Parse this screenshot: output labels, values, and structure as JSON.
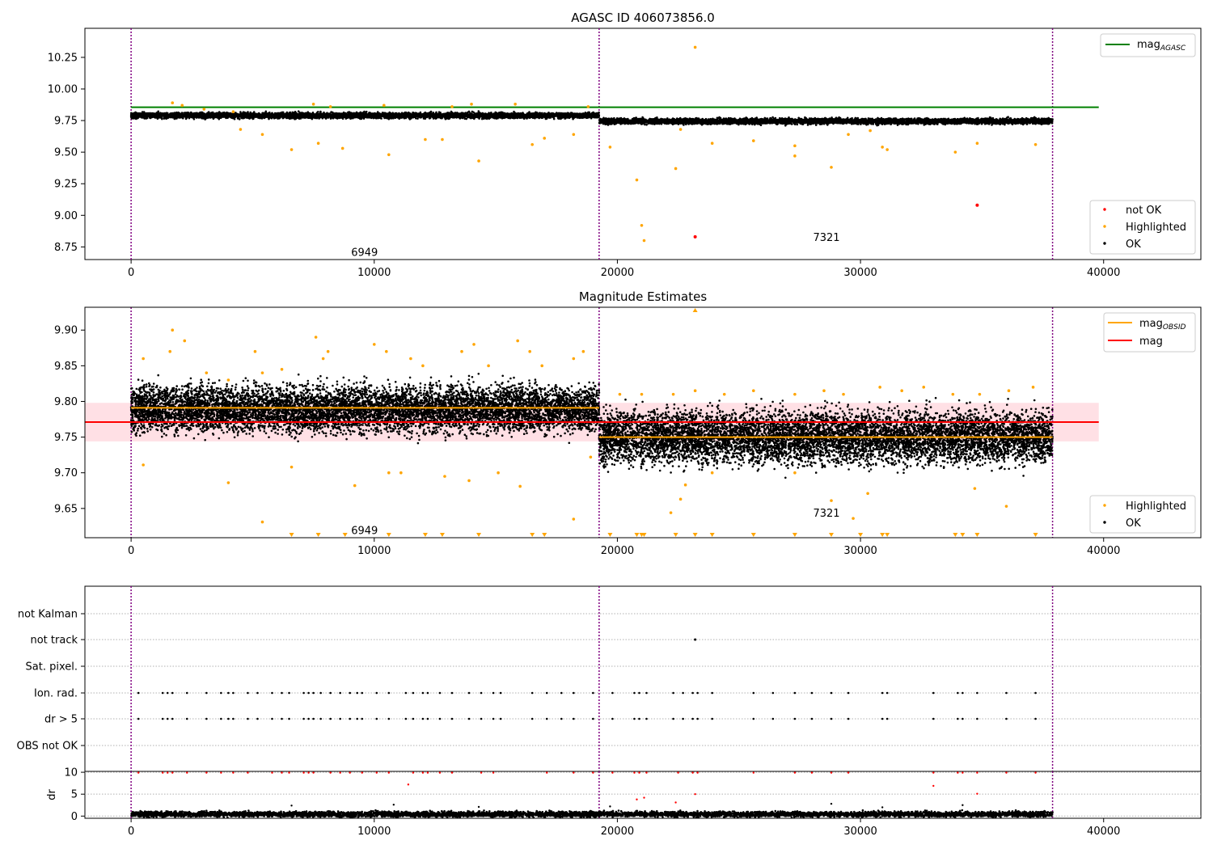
{
  "chart_data": [
    {
      "type": "scatter",
      "title": "AGASC ID 406073856.0",
      "xlim": [
        -1900,
        44000
      ],
      "ylim": [
        8.65,
        10.48
      ],
      "yticks": [
        "8.75",
        "9.00",
        "9.25",
        "9.50",
        "9.75",
        "10.00",
        "10.25"
      ],
      "xticks": [
        "0",
        "10000",
        "20000",
        "30000",
        "40000"
      ],
      "obs_boundaries": [
        0,
        19250,
        37900
      ],
      "obs_labels": [
        {
          "text": "6949",
          "x": 9600,
          "y": 8.71
        },
        {
          "text": "7321",
          "x": 28600,
          "y": 8.83
        }
      ],
      "reference_line": {
        "name_main": "mag",
        "name_sub": "AGASC",
        "y": 9.855,
        "x": [
          0,
          39800
        ],
        "color": "#008000"
      },
      "ok_band": [
        {
          "x": [
            0,
            19250
          ],
          "y_center": 9.79,
          "spread": 0.022
        },
        {
          "x": [
            19250,
            37900
          ],
          "y_center": 9.745,
          "spread": 0.022
        }
      ],
      "highlighted": [
        [
          1700,
          9.89
        ],
        [
          2100,
          9.87
        ],
        [
          3000,
          9.84
        ],
        [
          4200,
          9.82
        ],
        [
          4500,
          9.68
        ],
        [
          5400,
          9.64
        ],
        [
          6600,
          9.52
        ],
        [
          7500,
          9.88
        ],
        [
          7700,
          9.57
        ],
        [
          8200,
          9.86
        ],
        [
          8700,
          9.53
        ],
        [
          10600,
          9.48
        ],
        [
          10400,
          9.87
        ],
        [
          12100,
          9.6
        ],
        [
          12800,
          9.6
        ],
        [
          13200,
          9.86
        ],
        [
          14000,
          9.88
        ],
        [
          14300,
          9.43
        ],
        [
          15800,
          9.88
        ],
        [
          16500,
          9.56
        ],
        [
          17000,
          9.61
        ],
        [
          18200,
          9.64
        ],
        [
          18800,
          9.86
        ],
        [
          19700,
          9.54
        ],
        [
          20800,
          9.28
        ],
        [
          21000,
          8.92
        ],
        [
          21100,
          8.8
        ],
        [
          22400,
          9.37
        ],
        [
          23200,
          10.33
        ],
        [
          23900,
          9.57
        ],
        [
          25600,
          9.59
        ],
        [
          27300,
          9.55
        ],
        [
          27300,
          9.47
        ],
        [
          28800,
          9.38
        ],
        [
          29500,
          9.64
        ],
        [
          30400,
          9.67
        ],
        [
          30900,
          9.54
        ],
        [
          31100,
          9.52
        ],
        [
          33900,
          9.5
        ],
        [
          34800,
          9.57
        ],
        [
          37200,
          9.56
        ],
        [
          22600,
          9.68
        ]
      ],
      "not_ok": [
        [
          23200,
          8.83
        ],
        [
          34800,
          9.08
        ]
      ],
      "legend_top": {
        "label_main": "mag",
        "label_sub": "AGASC"
      },
      "legend_bottom": [
        "not OK",
        "Highlighted",
        "OK"
      ],
      "colors": {
        "ok": "#000000",
        "highlighted": "#ffa500",
        "not_ok": "#ff0000",
        "boundary": "#800080"
      }
    },
    {
      "type": "scatter",
      "title": "Magnitude Estimates",
      "xlim": [
        -1900,
        44000
      ],
      "ylim": [
        9.609,
        9.932
      ],
      "yticks": [
        "9.65",
        "9.70",
        "9.75",
        "9.80",
        "9.85",
        "9.90"
      ],
      "xticks": [
        "0",
        "10000",
        "20000",
        "30000",
        "40000"
      ],
      "obs_boundaries": [
        0,
        19250,
        37900
      ],
      "obs_labels": [
        {
          "text": "6949",
          "x": 9600,
          "y": 9.62
        },
        {
          "text": "7321",
          "x": 28600,
          "y": 9.644
        }
      ],
      "mag_line": {
        "label": "mag",
        "y": 9.771,
        "x": [
          -1900,
          39800
        ],
        "band": [
          9.744,
          9.798
        ],
        "color": "#ff0000"
      },
      "mag_obsid": [
        {
          "x": [
            0,
            19250
          ],
          "y": 9.791
        },
        {
          "x": [
            19250,
            37900
          ],
          "y": 9.75
        }
      ],
      "ok_band": [
        {
          "x": [
            0,
            19250
          ],
          "y_center": 9.79,
          "spread": 0.032
        },
        {
          "x": [
            19250,
            37900
          ],
          "y_center": 9.75,
          "spread": 0.036
        }
      ],
      "highlighted_high": [
        [
          500,
          9.86
        ],
        [
          1700,
          9.9
        ],
        [
          1600,
          9.87
        ],
        [
          2200,
          9.885
        ],
        [
          3100,
          9.84
        ],
        [
          4000,
          9.83
        ],
        [
          5100,
          9.87
        ],
        [
          5400,
          9.84
        ],
        [
          6200,
          9.845
        ],
        [
          7600,
          9.89
        ],
        [
          7900,
          9.86
        ],
        [
          8100,
          9.87
        ],
        [
          10000,
          9.88
        ],
        [
          10500,
          9.87
        ],
        [
          11500,
          9.86
        ],
        [
          12000,
          9.85
        ],
        [
          13600,
          9.87
        ],
        [
          14100,
          9.88
        ],
        [
          14700,
          9.85
        ],
        [
          15900,
          9.885
        ],
        [
          16400,
          9.87
        ],
        [
          16900,
          9.85
        ],
        [
          18200,
          9.86
        ],
        [
          18600,
          9.87
        ],
        [
          20100,
          9.81
        ],
        [
          21000,
          9.81
        ],
        [
          22300,
          9.81
        ],
        [
          23200,
          9.815
        ],
        [
          24400,
          9.81
        ],
        [
          25600,
          9.815
        ],
        [
          27300,
          9.81
        ],
        [
          28500,
          9.815
        ],
        [
          29300,
          9.81
        ],
        [
          30800,
          9.82
        ],
        [
          31700,
          9.815
        ],
        [
          32600,
          9.82
        ],
        [
          33800,
          9.81
        ],
        [
          34900,
          9.81
        ],
        [
          36100,
          9.815
        ],
        [
          37100,
          9.82
        ]
      ],
      "highlighted_low": [
        [
          500,
          9.711
        ],
        [
          4000,
          9.686
        ],
        [
          5400,
          9.631
        ],
        [
          6600,
          9.708
        ],
        [
          9200,
          9.682
        ],
        [
          10600,
          9.7
        ],
        [
          11100,
          9.7
        ],
        [
          12900,
          9.695
        ],
        [
          13900,
          9.689
        ],
        [
          15100,
          9.7
        ],
        [
          16000,
          9.681
        ],
        [
          18200,
          9.635
        ],
        [
          18900,
          9.722
        ],
        [
          22200,
          9.644
        ],
        [
          22600,
          9.663
        ],
        [
          22800,
          9.683
        ],
        [
          23900,
          9.7
        ],
        [
          27300,
          9.7
        ],
        [
          28800,
          9.661
        ],
        [
          29700,
          9.636
        ],
        [
          30300,
          9.671
        ],
        [
          34700,
          9.678
        ],
        [
          36000,
          9.653
        ]
      ],
      "clipped_low": [
        6600,
        7700,
        8800,
        10600,
        12100,
        12800,
        14300,
        16500,
        17000,
        19700,
        20800,
        21000,
        21100,
        22400,
        23200,
        23900,
        25600,
        27300,
        28800,
        30000,
        30900,
        31100,
        33900,
        34200,
        34800,
        37200
      ],
      "clipped_high": [
        23200
      ],
      "legend_top": [
        {
          "label_main": "mag",
          "label_sub": "OBSID"
        },
        {
          "label": "mag"
        }
      ],
      "legend_bottom": [
        "Highlighted",
        "OK"
      ],
      "colors": {
        "ok": "#000000",
        "highlighted": "#ffa500",
        "mag": "#ff0000",
        "mag_obsid": "#ffa500",
        "band": "#ffd6dc",
        "boundary": "#800080"
      }
    },
    {
      "type": "scatter",
      "title": "",
      "xlim": [
        -1900,
        44000
      ],
      "categories": [
        "not Kalman",
        "not track",
        "Sat. pixel.",
        "Ion. rad.",
        "dr > 5",
        "OBS not OK"
      ],
      "flag_times": [
        300,
        1300,
        1500,
        1700,
        2300,
        3100,
        3700,
        4000,
        4200,
        4800,
        5200,
        5800,
        6200,
        6500,
        7100,
        7300,
        7500,
        7800,
        8200,
        8600,
        9000,
        9300,
        9500,
        10100,
        10600,
        11300,
        11600,
        12000,
        12200,
        12700,
        13200,
        13900,
        14400,
        14900,
        15200,
        16500,
        17100,
        17700,
        18200,
        19000,
        19800,
        20700,
        20900,
        21200,
        22300,
        22700,
        23100,
        23300,
        23900,
        25600,
        26400,
        27300,
        28000,
        28800,
        29500,
        30900,
        31100,
        33000,
        34000,
        34200,
        34800,
        36000,
        37200
      ],
      "not_track": [
        23200
      ],
      "dr_panel": {
        "ylabel": "dr",
        "ylim": [
          -0.5,
          10.2
        ],
        "yticks": [
          "0",
          "5",
          "10"
        ],
        "clipped_times": [
          300,
          1300,
          1500,
          1700,
          2300,
          3100,
          3700,
          4200,
          4800,
          5800,
          6200,
          6500,
          7100,
          7300,
          7500,
          8200,
          8600,
          9000,
          9500,
          10100,
          10600,
          11600,
          12000,
          12200,
          12700,
          13200,
          14400,
          14900,
          17100,
          18200,
          19000,
          19800,
          20700,
          20900,
          21200,
          22500,
          23100,
          23300,
          25600,
          27300,
          28000,
          28800,
          29500,
          33000,
          34000,
          34200,
          34800,
          36000,
          37200
        ],
        "red_mid": [
          [
            11400,
            7.2
          ],
          [
            20800,
            3.8
          ],
          [
            21100,
            4.2
          ],
          [
            22400,
            3.1
          ],
          [
            23200,
            5.0
          ],
          [
            33000,
            6.9
          ],
          [
            34800,
            5.1
          ]
        ],
        "black_mid": [
          [
            6600,
            2.4
          ],
          [
            10800,
            2.6
          ],
          [
            14300,
            2.1
          ],
          [
            19700,
            2.2
          ],
          [
            28800,
            2.8
          ],
          [
            30900,
            2.0
          ],
          [
            34200,
            2.5
          ]
        ]
      },
      "xticks": [
        "0",
        "10000",
        "20000",
        "30000",
        "40000"
      ],
      "obs_boundaries": [
        0,
        19250,
        37900
      ],
      "colors": {
        "flag": "#000000",
        "dr_ok": "#000000",
        "dr_high": "#ff0000",
        "boundary": "#800080"
      }
    }
  ]
}
